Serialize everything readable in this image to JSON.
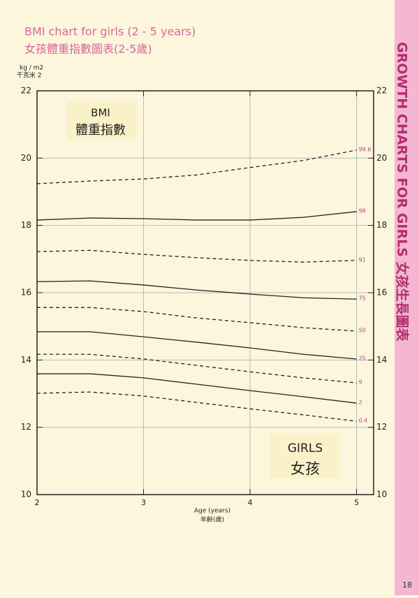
{
  "chart_data": {
    "type": "line",
    "title": "BMI chart for girls (2 - 5 years)",
    "subtitle": "女孩體重指數圖表(2-5歲)",
    "y_label": "kg / m2",
    "y_label_2": "千克米  2",
    "x_label": "Age (years)",
    "x_label_2": "年齡(歲)",
    "annotations": [
      "BMI",
      "體重指數",
      "GIRLS",
      "女孩"
    ],
    "sidebar": "GROWTH CHARTS FOR GIRLS 女孩生長圖表",
    "page_number": "18",
    "x": [
      2,
      2.5,
      3,
      3.5,
      4,
      4.5,
      5
    ],
    "xlim": [
      2,
      5.16
    ],
    "xticks": [
      2,
      3,
      4,
      5
    ],
    "ylim": [
      10,
      22
    ],
    "yticks": [
      10,
      12,
      14,
      16,
      18,
      20,
      22
    ],
    "grid": true,
    "series": [
      {
        "name": "99.6",
        "color": "#222222",
        "dashed": true,
        "values": [
          19.24,
          19.32,
          19.38,
          19.5,
          19.72,
          19.93,
          20.24
        ]
      },
      {
        "name": "98",
        "color": "#222222",
        "dashed": false,
        "values": [
          18.16,
          18.22,
          18.2,
          18.16,
          18.16,
          18.24,
          18.41
        ]
      },
      {
        "name": "91",
        "color": "#222222",
        "dashed": true,
        "values": [
          17.22,
          17.26,
          17.14,
          17.04,
          16.96,
          16.91,
          16.96
        ]
      },
      {
        "name": "75",
        "color": "#222222",
        "dashed": false,
        "values": [
          16.33,
          16.35,
          16.23,
          16.08,
          15.96,
          15.85,
          15.81
        ]
      },
      {
        "name": "50",
        "color": "#222222",
        "dashed": true,
        "values": [
          15.56,
          15.56,
          15.44,
          15.25,
          15.11,
          14.96,
          14.86
        ]
      },
      {
        "name": "25",
        "color": "#222222",
        "dashed": false,
        "values": [
          14.84,
          14.84,
          14.69,
          14.53,
          14.36,
          14.17,
          14.03
        ]
      },
      {
        "name": "9",
        "color": "#222222",
        "dashed": true,
        "values": [
          14.17,
          14.17,
          14.03,
          13.84,
          13.65,
          13.47,
          13.32
        ]
      },
      {
        "name": "2",
        "color": "#222222",
        "dashed": false,
        "values": [
          13.59,
          13.59,
          13.47,
          13.28,
          13.09,
          12.91,
          12.72
        ]
      },
      {
        "name": "0.4",
        "color": "#222222",
        "dashed": true,
        "values": [
          13.01,
          13.05,
          12.93,
          12.74,
          12.55,
          12.37,
          12.18
        ]
      }
    ]
  }
}
